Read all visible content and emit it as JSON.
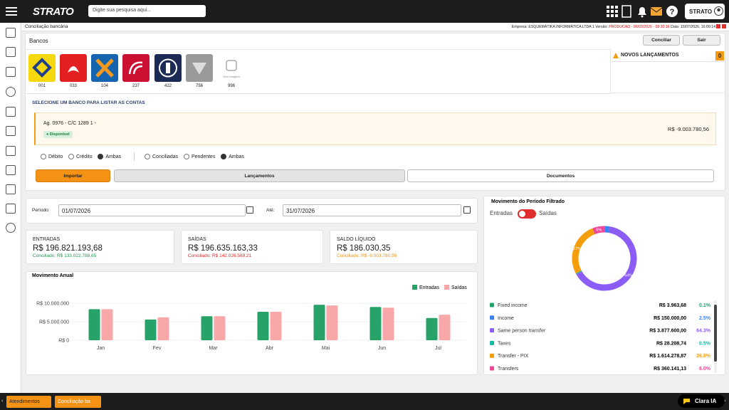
{
  "header": {
    "logo": "STRATO",
    "search_placeholder": "Digite sua pesquisa aqui...",
    "user": "STRATO"
  },
  "breadcrumb": "Conciliação bancária",
  "company_info": {
    "empresa": "Empresa: ESQUEMÁTIKA INFORMÁTICA LTDA 1 Versão:",
    "versao": "PRODUCAO - 06/03/2026 - 08:30:16",
    "data": "Data: 15/07/2026, 16:09:14"
  },
  "buttons": {
    "conciliar": "Conciliar",
    "sair": "Sair"
  },
  "bancos": {
    "title": "Bancos",
    "codes": [
      "001",
      "033",
      "104",
      "237",
      "422",
      "756",
      "998"
    ],
    "no_image": "Sem imagem"
  },
  "novos_lancamentos": {
    "title": "NOVOS LANÇAMENTOS",
    "count": 0
  },
  "select_title": "SELECIONE UM BANCO PARA LISTAR AS CONTAS",
  "account": {
    "label": "Ag. 0976 - C/C 1289 1 -",
    "status": "Disponível",
    "balance": "R$ -9.003.780,56"
  },
  "filters": {
    "type": [
      "Débito",
      "Crédito",
      "Ambas"
    ],
    "status": [
      "Conciliadas",
      "Pendentes",
      "Ambas"
    ]
  },
  "tabs": [
    "Importar",
    "Lançamentos",
    "Documentos"
  ],
  "period": {
    "label": "Período:",
    "from": "01/07/2026",
    "to_label": "Até:",
    "to": "31/07/2026"
  },
  "summary": [
    {
      "title": "ENTRADAS",
      "value": "R$ 196.821.193,68",
      "conciliado": "Conciliado: R$ 133.022.788,65"
    },
    {
      "title": "SAÍDAS",
      "value": "R$ 196.635.163,33",
      "conciliado": "Conciliado: R$ 142.026.569,21"
    },
    {
      "title": "SALDO LÍQUIDO",
      "value": "R$ 186.030,35",
      "conciliado": "Conciliado: R$ -9.003.780,56"
    }
  ],
  "chart_data": [
    {
      "type": "bar",
      "title": "Movimento Anual",
      "categories": [
        "Jan",
        "Fev",
        "Mar",
        "Abr",
        "Mai",
        "Jun",
        "Jul"
      ],
      "series": [
        {
          "name": "Entradas",
          "color": "#27a36a",
          "values": [
            8400000,
            5600000,
            6500000,
            7700000,
            9600000,
            9000000,
            6000000
          ]
        },
        {
          "name": "Saídas",
          "color": "#f8a8a8",
          "values": [
            8400000,
            6200000,
            6500000,
            7700000,
            9400000,
            8800000,
            6900000
          ]
        }
      ],
      "ylim": [
        0,
        12000000
      ],
      "yticks": [
        {
          "value": 0,
          "label": "R$ 0"
        },
        {
          "value": 5000000,
          "label": "R$ 5.000.000"
        },
        {
          "value": 10000000,
          "label": "R$ 10.000.000"
        }
      ],
      "grid": true
    },
    {
      "type": "pie",
      "title": "Movimento do Período Filtrado",
      "toggle": [
        "Entradas",
        "Saídas"
      ],
      "donut": true,
      "categories": [
        "Fixed income",
        "Income",
        "Same person transfer",
        "Taxes",
        "Transfer - PIX",
        "Transfers"
      ],
      "colors": [
        "#22a06b",
        "#3b82f6",
        "#8b5cf6",
        "#14b8a6",
        "#f59e0b",
        "#ec4899"
      ],
      "values": [
        0.1,
        2.5,
        64.3,
        0.5,
        26.8,
        6.0
      ],
      "value_labels": [
        "0.1%",
        "2.5%",
        "64.3%",
        "0.5%",
        "26.8%",
        "6.0%"
      ],
      "slice_labels": [
        null,
        null,
        "64%",
        null,
        "27%",
        "6%"
      ],
      "amounts": [
        "R$ 3.963,68",
        "R$ 150.000,00",
        "R$ 3.877.600,00",
        "R$ 28.208,74",
        "R$ 1.614.278,87",
        "R$ 360.141,13"
      ]
    }
  ],
  "footer": {
    "tabs": [
      "Atendimentos",
      "Conciliação ba"
    ],
    "assistant": "Clara IA"
  }
}
